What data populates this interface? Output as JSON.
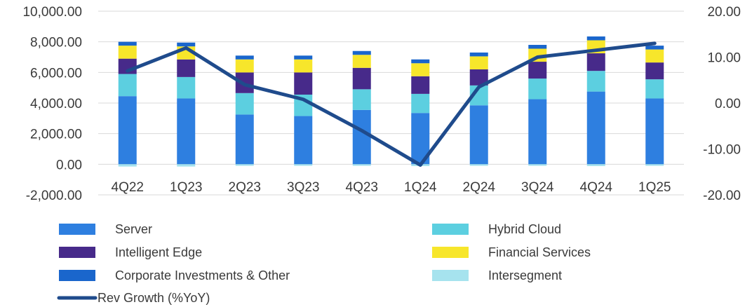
{
  "chart_data": {
    "type": "bar",
    "stacked": true,
    "categories": [
      "4Q22",
      "1Q23",
      "2Q23",
      "3Q23",
      "4Q23",
      "1Q24",
      "2Q24",
      "3Q24",
      "4Q24",
      "1Q25"
    ],
    "y_left": {
      "ylim": [
        -2000,
        10000
      ],
      "ticks": [
        -2000,
        0,
        2000,
        4000,
        6000,
        8000,
        10000
      ],
      "tick_labels": [
        "-2,000.00",
        "0.00",
        "2,000.00",
        "4,000.00",
        "6,000.00",
        "8,000.00",
        "10,000.00"
      ]
    },
    "y_right": {
      "ylim": [
        -20,
        20
      ],
      "ticks": [
        -20,
        -10,
        0,
        10,
        20
      ],
      "tick_labels": [
        "-20.00",
        "-10.00",
        "0.00",
        "10.00",
        "20.00"
      ]
    },
    "grid": true,
    "legend_position": "bottom",
    "series": [
      {
        "name": "Server",
        "color": "#2e7fe0",
        "values": [
          4450,
          4300,
          3250,
          3150,
          3550,
          3350,
          3850,
          4250,
          4750,
          4300
        ]
      },
      {
        "name": "Hybrid Cloud",
        "color": "#5ccfe0",
        "values": [
          1450,
          1400,
          1400,
          1400,
          1350,
          1250,
          1300,
          1350,
          1350,
          1250
        ]
      },
      {
        "name": "Intelligent Edge",
        "color": "#472a8a",
        "values": [
          1000,
          1150,
          1350,
          1450,
          1400,
          1150,
          1050,
          1100,
          1150,
          1100
        ]
      },
      {
        "name": "Financial Services",
        "color": "#f7e62b",
        "values": [
          850,
          850,
          850,
          850,
          850,
          850,
          850,
          850,
          850,
          850
        ]
      },
      {
        "name": "Corporate Investments & Other",
        "color": "#1a66cc",
        "values": [
          250,
          250,
          250,
          250,
          250,
          250,
          250,
          250,
          250,
          250
        ]
      },
      {
        "name": "Intersegment",
        "color": "#a6e3ee",
        "values": [
          -150,
          -150,
          -100,
          -100,
          -100,
          -120,
          -100,
          -100,
          -120,
          -100
        ]
      }
    ],
    "line_series": {
      "name": "Rev Growth (%YoY)",
      "color": "#1f4b8c",
      "axis": "right",
      "values": [
        7,
        12,
        4,
        0.8,
        -6,
        -13.5,
        3.5,
        10,
        11.5,
        13
      ]
    }
  }
}
